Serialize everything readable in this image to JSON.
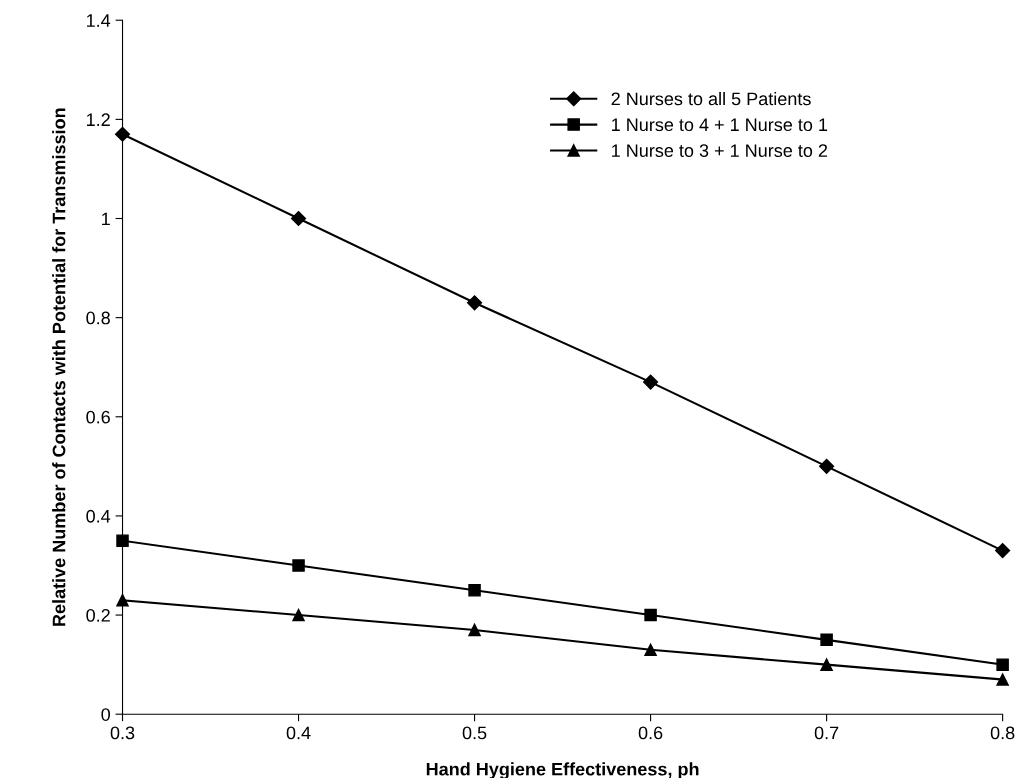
{
  "chart_data": {
    "type": "line",
    "xlabel": "Hand Hygiene Effectiveness, ph",
    "ylabel": "Relative Number of Contacts with Potential for Transmission",
    "x": [
      0.3,
      0.4,
      0.5,
      0.6,
      0.7,
      0.8
    ],
    "series": [
      {
        "name": "2 Nurses to all 5 Patients",
        "color": "#000000",
        "marker": "diamond",
        "values": [
          1.17,
          1.0,
          0.83,
          0.67,
          0.5,
          0.33
        ]
      },
      {
        "name": "1 Nurse to 4 + 1 Nurse to 1",
        "color": "#000000",
        "marker": "square",
        "values": [
          0.35,
          0.3,
          0.25,
          0.2,
          0.15,
          0.1
        ]
      },
      {
        "name": "1 Nurse to 3 + 1 Nurse to 2",
        "color": "#000000",
        "marker": "triangle",
        "values": [
          0.23,
          0.2,
          0.17,
          0.13,
          0.1,
          0.07
        ]
      }
    ],
    "xlim": [
      0.3,
      0.8
    ],
    "xticks": [
      0.3,
      0.4,
      0.5,
      0.6,
      0.7,
      0.8
    ],
    "ylim": [
      0,
      1.4
    ],
    "yticks": [
      0,
      0.2,
      0.4,
      0.6,
      0.8,
      1,
      1.2,
      1.4
    ],
    "grid": false,
    "legend": "top right",
    "line_style": "solid"
  }
}
